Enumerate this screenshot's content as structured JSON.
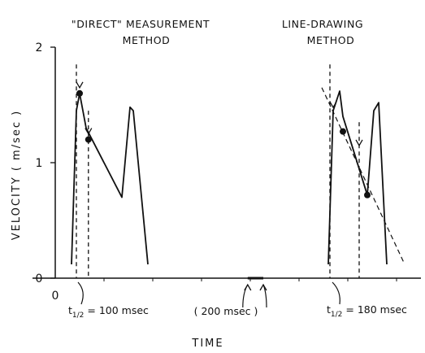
{
  "chart_data": {
    "type": "line",
    "panel_titles": [
      [
        "\"DIRECT\" MEASUREMENT",
        "METHOD"
      ],
      [
        "LINE-DRAWING",
        "METHOD"
      ]
    ],
    "ylabel": "VELOCITY  ( m/sec )",
    "xlabel": "TIME",
    "y_ticks": [
      "0",
      "1",
      "2"
    ],
    "x_ticks": [
      "0"
    ],
    "ylim": [
      0,
      2
    ],
    "x_unit": "msec",
    "grid": false,
    "annotations": {
      "scale_bar": "( 200 msec )",
      "left_t_half": {
        "symbol": "t",
        "subscript": "1/2",
        "text": "= 100 msec"
      },
      "right_t_half": {
        "symbol": "t",
        "subscript": "1/2",
        "text": "= 180 msec"
      }
    },
    "series": [
      {
        "panel": "left",
        "x": [
          50,
          65,
          75,
          95,
          205,
          230,
          240,
          285
        ],
        "y": [
          0.12,
          1.45,
          1.6,
          1.3,
          0.7,
          1.48,
          1.45,
          0.12
        ],
        "markers": [
          {
            "x": 75,
            "y": 1.6
          },
          {
            "x": 102,
            "y": 1.2
          }
        ]
      },
      {
        "panel": "right",
        "x": [
          840,
          855,
          875,
          885,
          960,
          980,
          995,
          1020
        ],
        "y": [
          0.12,
          1.45,
          1.62,
          1.4,
          0.72,
          1.45,
          1.52,
          0.12
        ],
        "markers": [
          {
            "x": 885,
            "y": 1.27
          },
          {
            "x": 960,
            "y": 0.72
          }
        ],
        "fitted_line": {
          "x": [
            820,
            1075
          ],
          "y": [
            1.65,
            0.12
          ]
        }
      }
    ],
    "markers": {
      "left_half_time": {
        "x_start": 65,
        "x_end": 102
      },
      "right_half_time": {
        "x_start": 845,
        "x_end": 935
      },
      "scale_bar_range": [
        592,
        640
      ]
    }
  }
}
